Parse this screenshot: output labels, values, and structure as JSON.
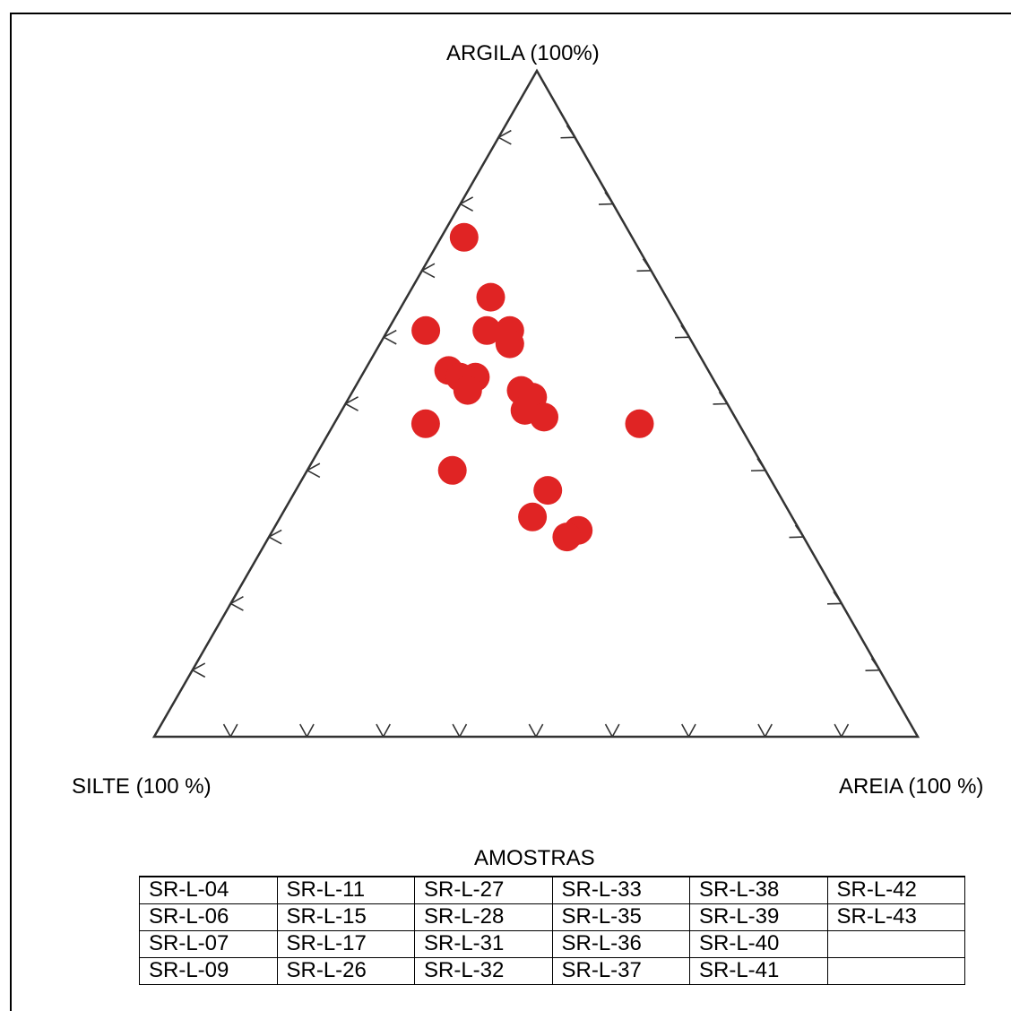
{
  "chart_data": {
    "type": "scatter",
    "subtype": "ternary",
    "vertices": {
      "top": "ARGILA (100%)",
      "left": "SILTE (100 %)",
      "right": "AREIA (100 %)"
    },
    "axis_range": [
      0,
      100
    ],
    "tick_step": 10,
    "marker_color": "#e02424",
    "points": [
      {
        "argila": 75,
        "silte": 22,
        "areia": 3
      },
      {
        "argila": 66,
        "silte": 23,
        "areia": 11
      },
      {
        "argila": 61,
        "silte": 26,
        "areia": 13
      },
      {
        "argila": 61,
        "silte": 23,
        "areia": 16
      },
      {
        "argila": 59,
        "silte": 24,
        "areia": 17
      },
      {
        "argila": 61,
        "silte": 34,
        "areia": 5
      },
      {
        "argila": 55,
        "silte": 34,
        "areia": 11
      },
      {
        "argila": 54,
        "silte": 33,
        "areia": 13
      },
      {
        "argila": 54,
        "silte": 31,
        "areia": 15
      },
      {
        "argila": 52,
        "silte": 33,
        "areia": 15
      },
      {
        "argila": 52,
        "silte": 26,
        "areia": 22
      },
      {
        "argila": 51,
        "silte": 25,
        "areia": 24
      },
      {
        "argila": 49,
        "silte": 27,
        "areia": 24
      },
      {
        "argila": 48,
        "silte": 25,
        "areia": 27
      },
      {
        "argila": 47,
        "silte": 41,
        "areia": 12
      },
      {
        "argila": 47,
        "silte": 13,
        "areia": 40
      },
      {
        "argila": 40,
        "silte": 41,
        "areia": 19
      },
      {
        "argila": 37,
        "silte": 30,
        "areia": 33
      },
      {
        "argila": 33,
        "silte": 34,
        "areia": 33
      },
      {
        "argila": 31,
        "silte": 29,
        "areia": 40
      },
      {
        "argila": 30,
        "silte": 31,
        "areia": 39
      }
    ]
  },
  "table": {
    "title": "AMOSTRAS",
    "rows": [
      [
        "SR-L-04",
        "SR-L-11",
        "SR-L-27",
        "SR-L-33",
        "SR-L-38",
        "SR-L-42"
      ],
      [
        "SR-L-06",
        "SR-L-15",
        "SR-L-28",
        "SR-L-35",
        "SR-L-39",
        "SR-L-43"
      ],
      [
        "SR-L-07",
        "SR-L-17",
        "SR-L-31",
        "SR-L-36",
        "SR-L-40",
        ""
      ],
      [
        "SR-L-09",
        "SR-L-26",
        "SR-L-32",
        "SR-L-37",
        "SR-L-41",
        ""
      ]
    ]
  }
}
